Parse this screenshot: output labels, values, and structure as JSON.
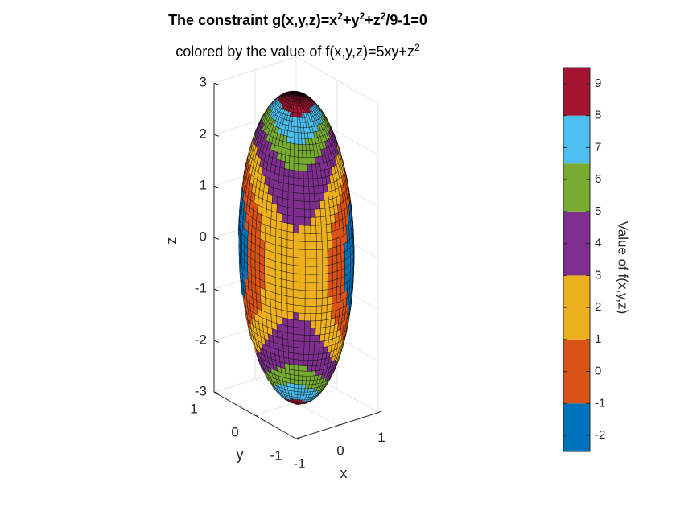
{
  "chart_data": {
    "type": "surface",
    "title_parts": [
      "The constraint g(x,y,z)=x",
      "2",
      "+y",
      "2",
      "+z",
      "2",
      "/9-1=0"
    ],
    "subtitle_parts": [
      "colored by the value of f(x,y,z)=5xy+z",
      "2"
    ],
    "surface": "x^2+y^2+z^2/9=1",
    "color_function": "5xy+z^2",
    "xlabel": "x",
    "ylabel": "y",
    "zlabel": "z",
    "xlim": [
      -1,
      1
    ],
    "ylim": [
      -1,
      1
    ],
    "zlim": [
      -3,
      3
    ],
    "x_ticks": [
      "-1",
      "0",
      "1"
    ],
    "y_ticks": [
      "-1",
      "0",
      "1"
    ],
    "z_ticks": [
      "-3",
      "-2",
      "-1",
      "0",
      "1",
      "2",
      "3"
    ],
    "grid": true,
    "colorbar": {
      "label": "Value of f(x,y,z)",
      "range": [
        -2.5,
        9.5
      ],
      "ticks": [
        "-2",
        "-1",
        "0",
        "1",
        "2",
        "3",
        "4",
        "5",
        "6",
        "7",
        "8",
        "9"
      ],
      "bands": [
        {
          "from": -2.5,
          "to": -1,
          "color": "#0072BD"
        },
        {
          "from": -1,
          "to": 1,
          "color": "#D95319"
        },
        {
          "from": 1,
          "to": 3,
          "color": "#EDB120"
        },
        {
          "from": 3,
          "to": 5,
          "color": "#7E2F8E"
        },
        {
          "from": 5,
          "to": 6.5,
          "color": "#77AC30"
        },
        {
          "from": 6.5,
          "to": 8,
          "color": "#4DBEEE"
        },
        {
          "from": 8,
          "to": 9.5,
          "color": "#A2142F"
        }
      ]
    }
  }
}
